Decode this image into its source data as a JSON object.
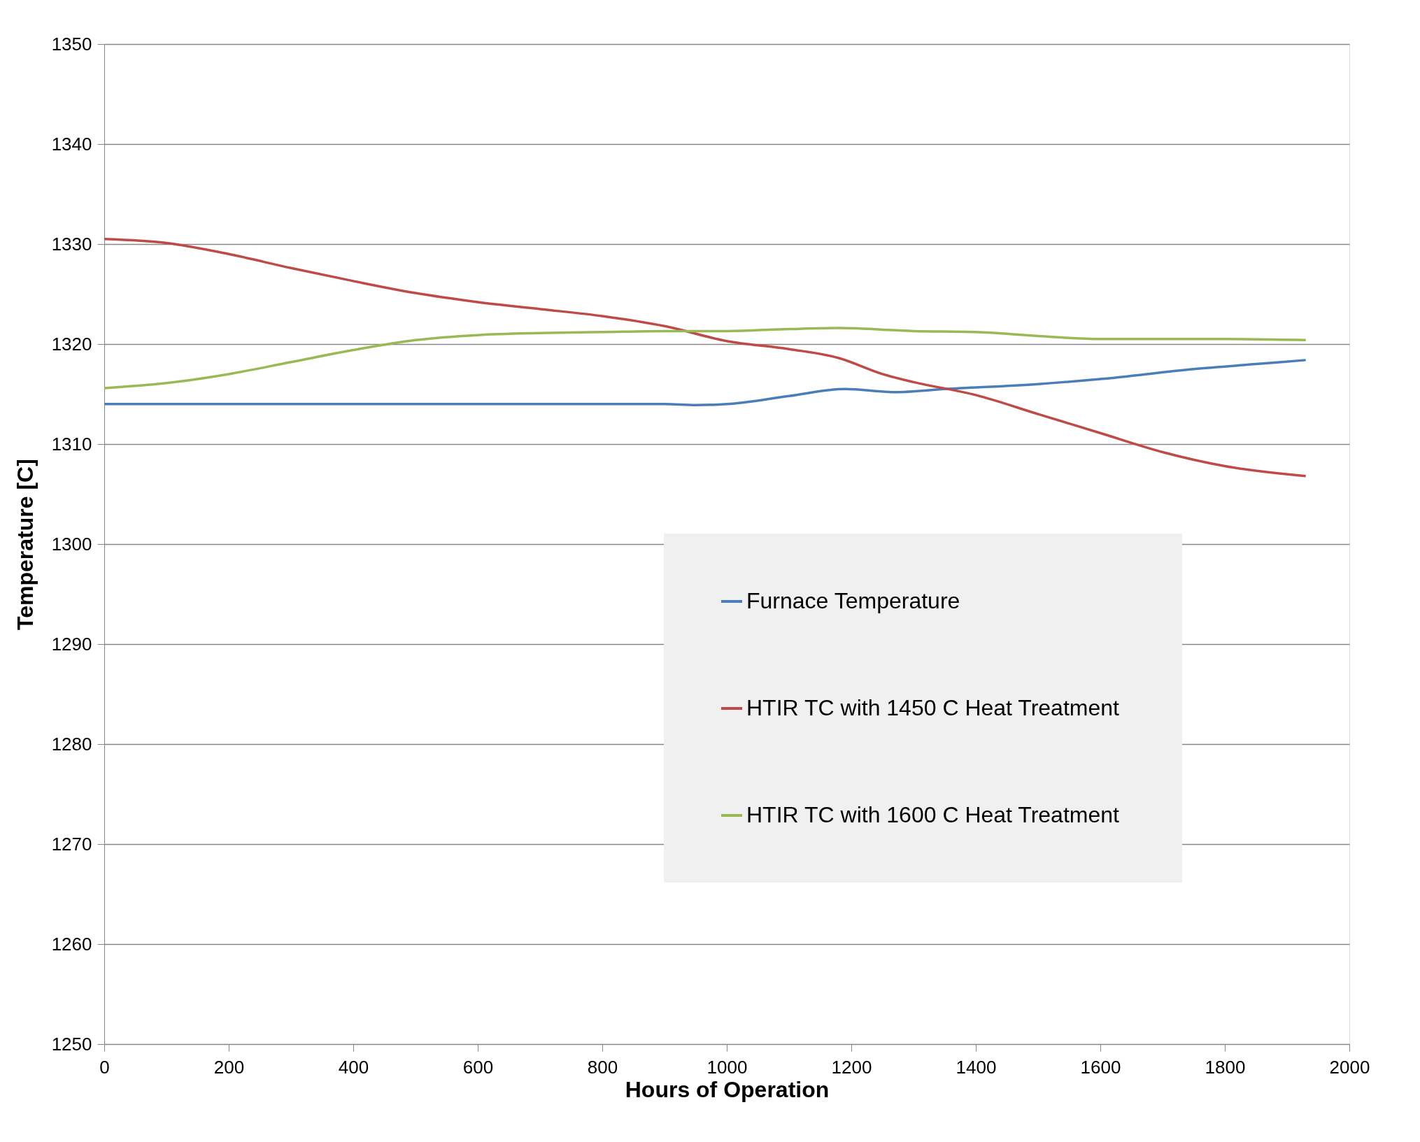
{
  "chart_data": {
    "type": "line",
    "xlabel": "Hours of Operation",
    "ylabel": "Temperature [C]",
    "xlim": [
      0,
      2000
    ],
    "xticks": [
      0,
      200,
      400,
      600,
      800,
      1000,
      1200,
      1400,
      1600,
      1800,
      2000
    ],
    "ylim": [
      1250,
      1350
    ],
    "yticks": [
      1250,
      1260,
      1270,
      1280,
      1290,
      1300,
      1310,
      1320,
      1330,
      1340,
      1350
    ],
    "grid": "y",
    "legend": "bottom right",
    "marker": "none",
    "line_style": "solid",
    "series": [
      {
        "name": "Furnace Temperature",
        "color": "#4a7ebb",
        "x": [
          0,
          200,
          400,
          600,
          800,
          900,
          950,
          1000,
          1100,
          1190,
          1270,
          1350,
          1500,
          1600,
          1750,
          1850,
          1930
        ],
        "values": [
          1314,
          1314,
          1314,
          1314,
          1314,
          1314,
          1313.9,
          1314,
          1314.8,
          1315.5,
          1315.2,
          1315.5,
          1316,
          1316.5,
          1317.5,
          1318,
          1318.4
        ]
      },
      {
        "name": "HTIR TC with 1450 C  Heat Treatment",
        "color": "#be4b48",
        "x": [
          0,
          100,
          200,
          300,
          400,
          500,
          600,
          700,
          800,
          900,
          1000,
          1100,
          1180,
          1250,
          1300,
          1400,
          1500,
          1600,
          1700,
          1800,
          1930
        ],
        "values": [
          1330.5,
          1330.1,
          1329,
          1327.6,
          1326.3,
          1325.1,
          1324.2,
          1323.5,
          1322.8,
          1321.8,
          1320.3,
          1319.5,
          1318.6,
          1317,
          1316.2,
          1314.9,
          1313,
          1311.1,
          1309.2,
          1307.8,
          1306.8
        ]
      },
      {
        "name": "HTIR TC with 1600 C  Heat Treatment",
        "color": "#98b954",
        "x": [
          0,
          100,
          200,
          300,
          400,
          500,
          600,
          700,
          800,
          900,
          1000,
          1100,
          1180,
          1300,
          1400,
          1500,
          1600,
          1700,
          1800,
          1930
        ],
        "values": [
          1315.6,
          1316.1,
          1317,
          1318.2,
          1319.4,
          1320.4,
          1320.9,
          1321.1,
          1321.2,
          1321.3,
          1321.3,
          1321.5,
          1321.6,
          1321.3,
          1321.2,
          1320.8,
          1320.5,
          1320.5,
          1320.5,
          1320.4
        ]
      }
    ]
  }
}
